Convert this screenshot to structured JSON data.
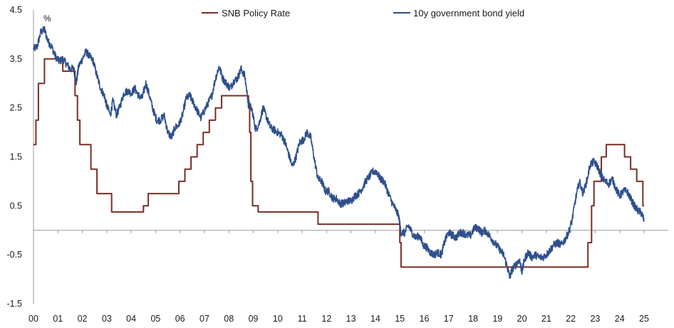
{
  "chart_data": {
    "type": "line",
    "title": "",
    "unit_label": "%",
    "xlabel": "",
    "ylabel": "",
    "xlim": [
      2000,
      2025.6
    ],
    "ylim": [
      -1.5,
      4.5
    ],
    "x_tick_labels": [
      "00",
      "01",
      "02",
      "03",
      "04",
      "05",
      "06",
      "07",
      "08",
      "09",
      "10",
      "11",
      "12",
      "13",
      "14",
      "15",
      "16",
      "17",
      "18",
      "19",
      "20",
      "21",
      "22",
      "23",
      "24",
      "25"
    ],
    "y_tick_labels": [
      "4.5",
      "3.5",
      "2.5",
      "1.5",
      "0.5",
      "-0.5",
      "-1.5"
    ],
    "y_tick_values": [
      4.5,
      3.5,
      2.5,
      1.5,
      0.5,
      -0.5,
      -1.5
    ],
    "zero_line": 0,
    "legend_position": "top-center",
    "series": [
      {
        "name": "SNB Policy Rate",
        "color": "#7a2e25",
        "style": "step",
        "points": [
          [
            2000.0,
            1.75
          ],
          [
            2000.1,
            2.25
          ],
          [
            2000.2,
            3.0
          ],
          [
            2000.45,
            3.5
          ],
          [
            2001.2,
            3.25
          ],
          [
            2001.6,
            3.25
          ],
          [
            2001.7,
            2.75
          ],
          [
            2001.8,
            2.25
          ],
          [
            2001.9,
            1.75
          ],
          [
            2002.35,
            1.25
          ],
          [
            2002.6,
            0.75
          ],
          [
            2003.2,
            0.375
          ],
          [
            2004.5,
            0.5
          ],
          [
            2004.7,
            0.75
          ],
          [
            2005.95,
            1.0
          ],
          [
            2006.2,
            1.25
          ],
          [
            2006.45,
            1.5
          ],
          [
            2006.7,
            1.75
          ],
          [
            2006.95,
            2.0
          ],
          [
            2007.2,
            2.25
          ],
          [
            2007.45,
            2.5
          ],
          [
            2007.7,
            2.75
          ],
          [
            2008.8,
            2.5
          ],
          [
            2008.85,
            2.0
          ],
          [
            2008.9,
            1.0
          ],
          [
            2008.97,
            0.5
          ],
          [
            2009.2,
            0.375
          ],
          [
            2011.65,
            0.125
          ],
          [
            2011.75,
            0.125
          ],
          [
            2014.95,
            0.125
          ],
          [
            2015.0,
            -0.25
          ],
          [
            2015.05,
            -0.75
          ],
          [
            2022.5,
            -0.75
          ],
          [
            2022.7,
            -0.25
          ],
          [
            2022.85,
            0.5
          ],
          [
            2022.95,
            1.0
          ],
          [
            2023.25,
            1.5
          ],
          [
            2023.45,
            1.75
          ],
          [
            2024.2,
            1.5
          ],
          [
            2024.45,
            1.25
          ],
          [
            2024.7,
            1.0
          ],
          [
            2024.95,
            0.5
          ],
          [
            2025.0,
            0.5
          ]
        ]
      },
      {
        "name": "10y government bond yield",
        "color": "#2d4f8c",
        "style": "line",
        "points": [
          [
            2000.0,
            3.7
          ],
          [
            2000.15,
            3.75
          ],
          [
            2000.3,
            4.05
          ],
          [
            2000.45,
            4.1
          ],
          [
            2000.6,
            3.85
          ],
          [
            2000.75,
            3.75
          ],
          [
            2000.9,
            3.55
          ],
          [
            2001.05,
            3.45
          ],
          [
            2001.2,
            3.5
          ],
          [
            2001.35,
            3.4
          ],
          [
            2001.5,
            3.3
          ],
          [
            2001.65,
            3.3
          ],
          [
            2001.75,
            3.0
          ],
          [
            2001.85,
            3.35
          ],
          [
            2002.0,
            3.5
          ],
          [
            2002.15,
            3.65
          ],
          [
            2002.3,
            3.55
          ],
          [
            2002.45,
            3.45
          ],
          [
            2002.6,
            3.15
          ],
          [
            2002.75,
            2.9
          ],
          [
            2002.9,
            2.75
          ],
          [
            2003.0,
            2.55
          ],
          [
            2003.15,
            2.35
          ],
          [
            2003.25,
            2.65
          ],
          [
            2003.4,
            2.35
          ],
          [
            2003.55,
            2.55
          ],
          [
            2003.7,
            2.8
          ],
          [
            2003.85,
            2.85
          ],
          [
            2004.0,
            2.8
          ],
          [
            2004.15,
            2.9
          ],
          [
            2004.3,
            2.75
          ],
          [
            2004.45,
            2.7
          ],
          [
            2004.6,
            3.0
          ],
          [
            2004.75,
            2.75
          ],
          [
            2004.9,
            2.45
          ],
          [
            2005.05,
            2.25
          ],
          [
            2005.2,
            2.25
          ],
          [
            2005.35,
            2.35
          ],
          [
            2005.5,
            2.0
          ],
          [
            2005.65,
            1.9
          ],
          [
            2005.8,
            2.1
          ],
          [
            2005.95,
            2.15
          ],
          [
            2006.1,
            2.35
          ],
          [
            2006.25,
            2.7
          ],
          [
            2006.4,
            2.75
          ],
          [
            2006.55,
            2.6
          ],
          [
            2006.7,
            2.45
          ],
          [
            2006.85,
            2.3
          ],
          [
            2007.0,
            2.45
          ],
          [
            2007.15,
            2.6
          ],
          [
            2007.3,
            2.75
          ],
          [
            2007.45,
            3.1
          ],
          [
            2007.6,
            3.35
          ],
          [
            2007.75,
            3.1
          ],
          [
            2007.9,
            3.0
          ],
          [
            2008.05,
            2.9
          ],
          [
            2008.2,
            3.05
          ],
          [
            2008.35,
            3.1
          ],
          [
            2008.5,
            3.3
          ],
          [
            2008.65,
            3.15
          ],
          [
            2008.8,
            2.6
          ],
          [
            2008.95,
            2.45
          ],
          [
            2009.1,
            2.05
          ],
          [
            2009.25,
            2.2
          ],
          [
            2009.4,
            2.5
          ],
          [
            2009.55,
            2.3
          ],
          [
            2009.7,
            2.1
          ],
          [
            2009.85,
            2.05
          ],
          [
            2010.0,
            2.0
          ],
          [
            2010.15,
            1.95
          ],
          [
            2010.3,
            1.8
          ],
          [
            2010.45,
            1.55
          ],
          [
            2010.6,
            1.3
          ],
          [
            2010.75,
            1.5
          ],
          [
            2010.9,
            1.8
          ],
          [
            2011.05,
            1.85
          ],
          [
            2011.2,
            2.0
          ],
          [
            2011.35,
            1.9
          ],
          [
            2011.5,
            1.45
          ],
          [
            2011.65,
            1.05
          ],
          [
            2011.8,
            1.0
          ],
          [
            2011.95,
            0.8
          ],
          [
            2012.1,
            0.8
          ],
          [
            2012.25,
            0.65
          ],
          [
            2012.4,
            0.65
          ],
          [
            2012.55,
            0.55
          ],
          [
            2012.7,
            0.55
          ],
          [
            2012.85,
            0.6
          ],
          [
            2013.0,
            0.6
          ],
          [
            2013.15,
            0.7
          ],
          [
            2013.3,
            0.75
          ],
          [
            2013.45,
            0.85
          ],
          [
            2013.6,
            1.0
          ],
          [
            2013.75,
            1.1
          ],
          [
            2013.9,
            1.2
          ],
          [
            2014.05,
            1.2
          ],
          [
            2014.2,
            1.05
          ],
          [
            2014.35,
            1.0
          ],
          [
            2014.5,
            0.8
          ],
          [
            2014.65,
            0.6
          ],
          [
            2014.8,
            0.45
          ],
          [
            2014.95,
            0.3
          ],
          [
            2015.05,
            -0.05
          ],
          [
            2015.2,
            -0.05
          ],
          [
            2015.35,
            0.1
          ],
          [
            2015.5,
            -0.05
          ],
          [
            2015.65,
            -0.15
          ],
          [
            2015.8,
            -0.1
          ],
          [
            2015.95,
            -0.3
          ],
          [
            2016.1,
            -0.35
          ],
          [
            2016.25,
            -0.45
          ],
          [
            2016.4,
            -0.5
          ],
          [
            2016.55,
            -0.45
          ],
          [
            2016.7,
            -0.5
          ],
          [
            2016.85,
            -0.2
          ],
          [
            2017.0,
            -0.05
          ],
          [
            2017.15,
            -0.1
          ],
          [
            2017.3,
            -0.15
          ],
          [
            2017.45,
            -0.05
          ],
          [
            2017.6,
            -0.05
          ],
          [
            2017.75,
            -0.1
          ],
          [
            2017.9,
            -0.1
          ],
          [
            2018.05,
            0.05
          ],
          [
            2018.2,
            0.05
          ],
          [
            2018.35,
            -0.05
          ],
          [
            2018.5,
            0.0
          ],
          [
            2018.65,
            -0.1
          ],
          [
            2018.8,
            -0.2
          ],
          [
            2018.95,
            -0.3
          ],
          [
            2019.1,
            -0.4
          ],
          [
            2019.25,
            -0.5
          ],
          [
            2019.4,
            -0.75
          ],
          [
            2019.5,
            -0.95
          ],
          [
            2019.6,
            -0.8
          ],
          [
            2019.75,
            -0.7
          ],
          [
            2019.9,
            -0.6
          ],
          [
            2020.0,
            -0.85
          ],
          [
            2020.1,
            -0.6
          ],
          [
            2020.25,
            -0.45
          ],
          [
            2020.4,
            -0.55
          ],
          [
            2020.55,
            -0.5
          ],
          [
            2020.7,
            -0.55
          ],
          [
            2020.85,
            -0.55
          ],
          [
            2021.0,
            -0.5
          ],
          [
            2021.15,
            -0.4
          ],
          [
            2021.3,
            -0.3
          ],
          [
            2021.45,
            -0.25
          ],
          [
            2021.6,
            -0.3
          ],
          [
            2021.75,
            -0.2
          ],
          [
            2021.9,
            -0.05
          ],
          [
            2022.05,
            0.2
          ],
          [
            2022.2,
            0.65
          ],
          [
            2022.35,
            1.0
          ],
          [
            2022.5,
            0.75
          ],
          [
            2022.65,
            1.0
          ],
          [
            2022.8,
            1.35
          ],
          [
            2022.95,
            1.4
          ],
          [
            2023.1,
            1.3
          ],
          [
            2023.25,
            1.1
          ],
          [
            2023.4,
            1.0
          ],
          [
            2023.55,
            0.95
          ],
          [
            2023.7,
            1.05
          ],
          [
            2023.85,
            0.85
          ],
          [
            2024.0,
            0.7
          ],
          [
            2024.15,
            0.8
          ],
          [
            2024.3,
            0.8
          ],
          [
            2024.45,
            0.65
          ],
          [
            2024.6,
            0.5
          ],
          [
            2024.75,
            0.4
          ],
          [
            2024.9,
            0.35
          ],
          [
            2025.0,
            0.2
          ]
        ]
      }
    ]
  }
}
